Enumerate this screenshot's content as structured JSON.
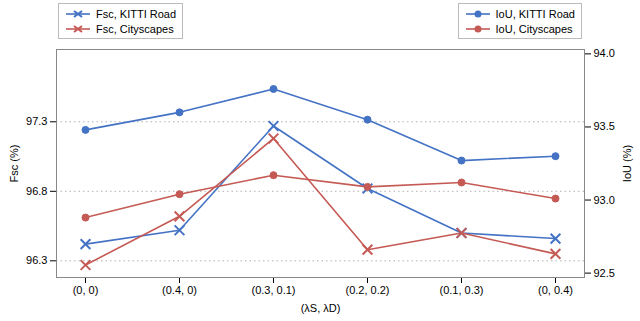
{
  "chart_data": {
    "type": "line",
    "x_label": "(λS, λD)",
    "y_label": "Fsc (%)",
    "y2_label": "IoU (%)",
    "categories": [
      "(0, 0)",
      "(0.4, 0)",
      "(0.3, 0.1)",
      "(0.2, 0.2)",
      "(0.1, 0.3)",
      "(0, 0.4)"
    ],
    "ylim": [
      96.18,
      97.82
    ],
    "yticks": [
      96.3,
      96.8,
      97.3
    ],
    "y2lim": [
      92.47,
      94.03
    ],
    "y2ticks": [
      92.5,
      {
        "value": 93,
        "label": "93.0"
      },
      93.5,
      {
        "value": 94,
        "label": "94.0"
      }
    ],
    "grid": true,
    "legend": "top",
    "series": [
      {
        "name": "Fsc, KITTI Road",
        "color": "#4472C4",
        "marker": "x",
        "values": [
          96.42,
          96.52,
          97.27,
          96.82,
          96.5,
          96.46
        ]
      },
      {
        "name": "Fsc, Cityscapes",
        "color": "#C55A55",
        "marker": "x",
        "values": [
          96.27,
          96.62,
          97.18,
          96.38,
          96.5,
          96.35
        ]
      },
      {
        "name": "IoU, KITTI Road",
        "color": "#4472C4",
        "marker": "o",
        "axis": "y2",
        "values": [
          93.48,
          93.6,
          93.76,
          93.55,
          93.27,
          93.3
        ]
      },
      {
        "name": "IoU, Cityscapes",
        "color": "#C55A55",
        "marker": "o",
        "axis": "y2",
        "values": [
          92.88,
          93.04,
          93.17,
          93.09,
          93.12,
          93.01
        ]
      }
    ]
  }
}
